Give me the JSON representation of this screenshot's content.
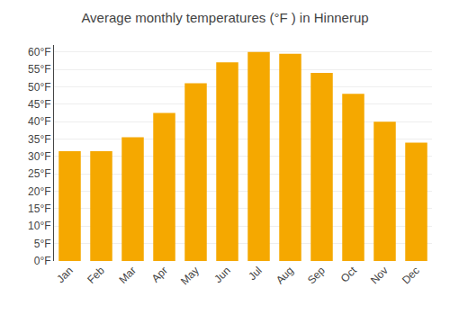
{
  "chart_data": {
    "type": "bar",
    "title": "Average monthly temperatures (°F ) in Hinnerup",
    "categories": [
      "Jan",
      "Feb",
      "Mar",
      "Apr",
      "May",
      "Jun",
      "Jul",
      "Aug",
      "Sep",
      "Oct",
      "Nov",
      "Dec"
    ],
    "values": [
      31.5,
      31.5,
      35.5,
      42.5,
      51.0,
      57.0,
      60.0,
      59.5,
      54.0,
      48.0,
      40.0,
      34.0
    ],
    "color": "#F5A800",
    "ylim": [
      0,
      62
    ],
    "yticks": [
      {
        "value": 0,
        "label": "0°F"
      },
      {
        "value": 5,
        "label": "5°F"
      },
      {
        "value": 10,
        "label": "10°F"
      },
      {
        "value": 15,
        "label": "15°F"
      },
      {
        "value": 20,
        "label": "20°F"
      },
      {
        "value": 25,
        "label": "25°F"
      },
      {
        "value": 30,
        "label": "30°F"
      },
      {
        "value": 35,
        "label": "35°F"
      },
      {
        "value": 40,
        "label": "40°F"
      },
      {
        "value": 45,
        "label": "45°F"
      },
      {
        "value": 50,
        "label": "50°F"
      },
      {
        "value": 55,
        "label": "55°F"
      },
      {
        "value": 60,
        "label": "60°F"
      }
    ],
    "grid": true
  }
}
